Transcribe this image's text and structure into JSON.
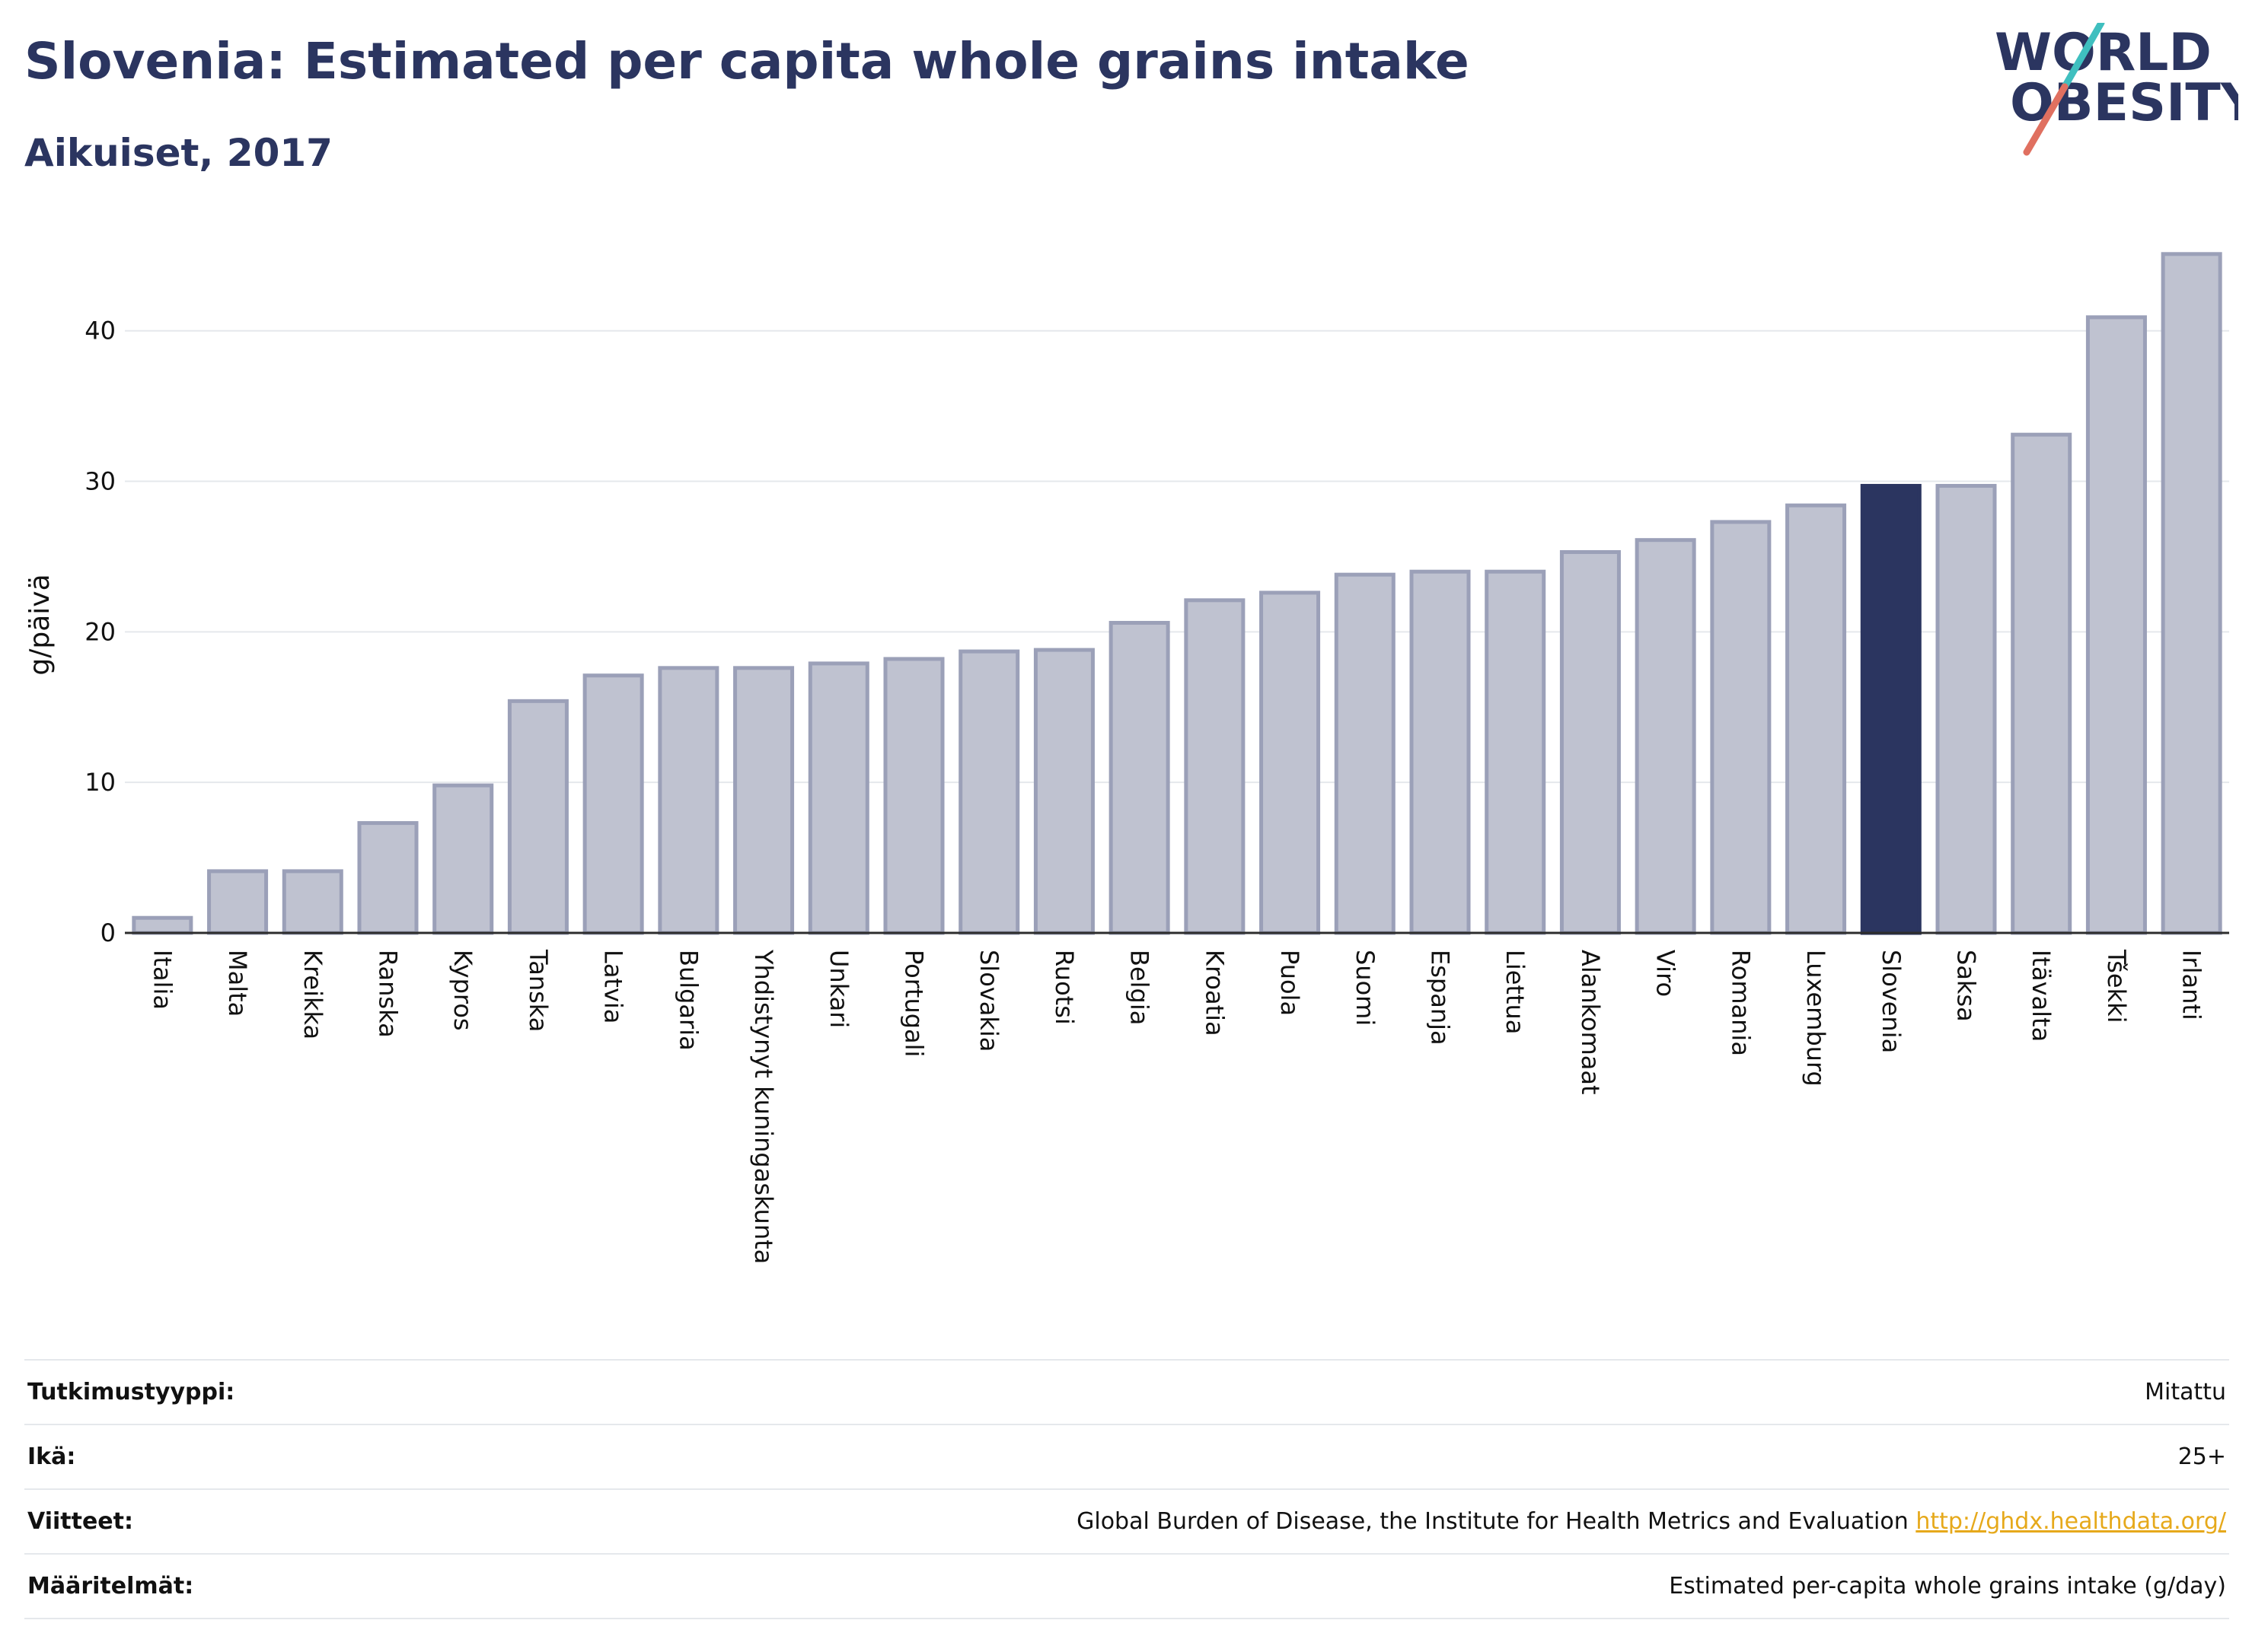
{
  "header": {
    "title": "Slovenia: Estimated per capita whole grains intake",
    "subtitle": "Aikuiset, 2017",
    "logo_line1": "WORLD",
    "logo_line2": "OBESITY"
  },
  "colors": {
    "bar": "#bfc2d0",
    "bar_border": "#9ba0b8",
    "highlight": "#2b3560",
    "grid": "#e5e8ec",
    "logo_teal": "#3fbfbf",
    "logo_coral": "#e07060"
  },
  "chart_data": {
    "type": "bar",
    "title": "Slovenia: Estimated per capita whole grains intake",
    "subtitle": "Aikuiset, 2017",
    "xlabel": "",
    "ylabel": "g/päivä",
    "ylim": [
      0,
      46
    ],
    "yticks": [
      0,
      10,
      20,
      30,
      40
    ],
    "grid": true,
    "highlight": "Slovenia",
    "categories": [
      "Italia",
      "Malta",
      "Kreikka",
      "Ranska",
      "Kypros",
      "Tanska",
      "Latvia",
      "Bulgaria",
      "Yhdistynyt kuningaskunta",
      "Unkari",
      "Portugali",
      "Slovakia",
      "Ruotsi",
      "Belgia",
      "Kroatia",
      "Puola",
      "Suomi",
      "Espanja",
      "Liettua",
      "Alankomaat",
      "Viro",
      "Romania",
      "Luxemburg",
      "Slovenia",
      "Saksa",
      "Itävalta",
      "Tšekki",
      "Irlanti"
    ],
    "values": [
      1.0,
      4.1,
      4.1,
      7.3,
      9.8,
      15.4,
      17.1,
      17.6,
      17.6,
      17.9,
      18.2,
      18.7,
      18.8,
      20.6,
      22.1,
      22.6,
      23.8,
      24.0,
      24.0,
      25.3,
      26.1,
      27.3,
      28.4,
      29.7,
      29.7,
      33.1,
      40.9,
      45.1
    ]
  },
  "info": [
    {
      "key": "Tutkimustyyppi:",
      "value": "Mitattu"
    },
    {
      "key": "Ikä:",
      "value": "25+"
    },
    {
      "key": "Viitteet:",
      "value": "Global Burden of Disease, the Institute for Health Metrics and Evaluation",
      "link": "http://ghdx.healthdata.org/"
    },
    {
      "key": "Määritelmät:",
      "value": "Estimated per-capita whole grains intake (g/day)"
    }
  ]
}
